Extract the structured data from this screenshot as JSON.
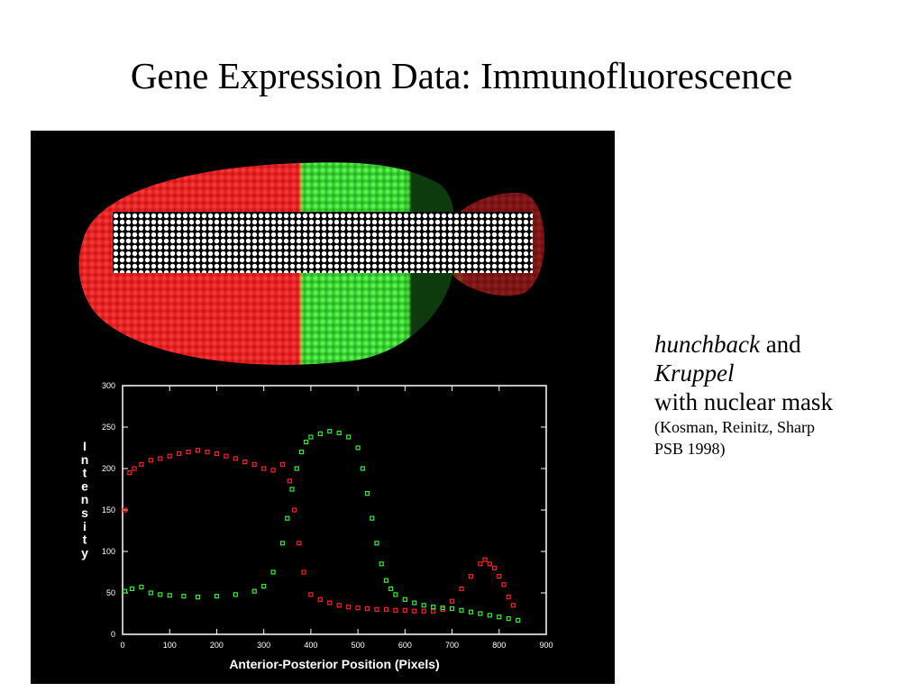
{
  "slide": {
    "title": "Gene Expression Data: Immunofluorescence"
  },
  "caption": {
    "gene1": "hunchback",
    "and": " and",
    "gene2": "Kruppel",
    "mask_text": "with nuclear mask",
    "ref_line1": "(Kosman, Reinitz, Sharp",
    "ref_line2": "PSB 1998)"
  },
  "colors": {
    "hunchback": "#ff2020",
    "kruppel": "#33ee33",
    "plot_bg": "#000000",
    "axis": "#ffffff"
  },
  "chart_data": {
    "type": "scatter",
    "title": "",
    "xlabel": "Anterior-Posterior Position (Pixels)",
    "ylabel": "Intensity",
    "xlim": [
      0,
      900
    ],
    "ylim": [
      0,
      300
    ],
    "x_ticks": [
      0,
      100,
      200,
      300,
      400,
      500,
      600,
      700,
      800,
      900
    ],
    "y_ticks": [
      0,
      50,
      100,
      150,
      200,
      250,
      300
    ],
    "grid": false,
    "series": [
      {
        "color": "red",
        "x": [
          5,
          15,
          25,
          40,
          60,
          80,
          100,
          120,
          140,
          160,
          180,
          200,
          220,
          240,
          260,
          280,
          300,
          320,
          340,
          355,
          365,
          375,
          385,
          400,
          420,
          440,
          460,
          480,
          500,
          520,
          540,
          560,
          580,
          600,
          620,
          640,
          660,
          680,
          700,
          720,
          740,
          760,
          770,
          780,
          790,
          800,
          810,
          820,
          830
        ],
        "y": [
          150,
          195,
          200,
          205,
          210,
          212,
          215,
          218,
          220,
          222,
          220,
          218,
          215,
          212,
          208,
          205,
          200,
          198,
          205,
          185,
          150,
          110,
          75,
          48,
          42,
          38,
          35,
          33,
          32,
          31,
          30,
          30,
          29,
          29,
          28,
          28,
          28,
          30,
          40,
          55,
          70,
          85,
          90,
          85,
          80,
          70,
          60,
          45,
          35
        ]
      },
      {
        "color": "green",
        "x": [
          5,
          20,
          40,
          60,
          80,
          100,
          130,
          160,
          200,
          240,
          280,
          300,
          320,
          340,
          350,
          360,
          370,
          380,
          390,
          400,
          420,
          440,
          460,
          480,
          500,
          510,
          520,
          530,
          540,
          550,
          560,
          570,
          580,
          600,
          620,
          640,
          660,
          680,
          700,
          720,
          740,
          760,
          780,
          800,
          820,
          840
        ],
        "y": [
          52,
          55,
          57,
          50,
          48,
          47,
          46,
          45,
          46,
          48,
          52,
          58,
          75,
          110,
          140,
          175,
          200,
          220,
          232,
          238,
          242,
          245,
          243,
          238,
          225,
          200,
          170,
          140,
          110,
          85,
          65,
          55,
          48,
          42,
          38,
          35,
          33,
          32,
          31,
          29,
          27,
          25,
          23,
          21,
          19,
          17
        ]
      }
    ]
  }
}
